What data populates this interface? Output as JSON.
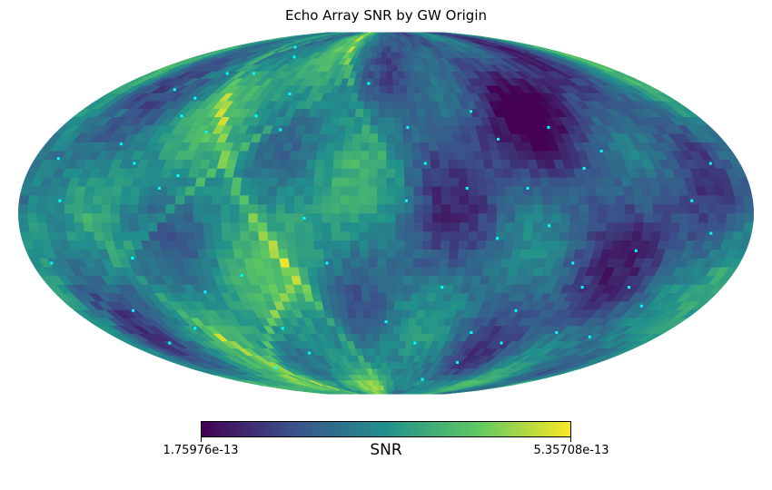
{
  "chart_data": {
    "type": "heatmap",
    "projection": "mollweide",
    "title": "Echo Array SNR by GW Origin",
    "colorbar": {
      "label": "SNR",
      "min_label": "1.75976e-13",
      "max_label": "5.35708e-13",
      "min": 1.75976e-13,
      "max": 5.35708e-13,
      "colormap": "viridis",
      "colors": [
        "#440154",
        "#3b528b",
        "#21918c",
        "#5ec962",
        "#fde725"
      ],
      "orientation": "horizontal"
    },
    "background_color": "#ffffff",
    "marker_color": "#00ffff",
    "grid": false,
    "markers": [
      {
        "lon": 105,
        "lat": 75
      },
      {
        "lon": 86,
        "lat": 69
      },
      {
        "lon": 120,
        "lat": 60
      },
      {
        "lon": 100,
        "lat": 60
      },
      {
        "lon": 120,
        "lat": 48
      },
      {
        "lon": 140,
        "lat": 52
      },
      {
        "lon": 62,
        "lat": 50
      },
      {
        "lon": 75,
        "lat": 40
      },
      {
        "lon": 118,
        "lat": 40
      },
      {
        "lon": 98,
        "lat": 33
      },
      {
        "lon": 58,
        "lat": 34
      },
      {
        "lon": 140,
        "lat": 28
      },
      {
        "lon": 168,
        "lat": 22
      },
      {
        "lon": 128,
        "lat": 20
      },
      {
        "lon": 104,
        "lat": 15
      },
      {
        "lon": 160,
        "lat": 5
      },
      {
        "lon": 112,
        "lat": 10
      },
      {
        "lon": 170,
        "lat": -20
      },
      {
        "lon": 128,
        "lat": -18
      },
      {
        "lon": 146,
        "lat": -40
      },
      {
        "lon": 150,
        "lat": -55
      },
      {
        "lon": 120,
        "lat": -48
      },
      {
        "lon": 98,
        "lat": -32
      },
      {
        "lon": 75,
        "lat": -25
      },
      {
        "lon": 65,
        "lat": -48
      },
      {
        "lon": 58,
        "lat": -60
      },
      {
        "lon": 100,
        "lat": -68
      },
      {
        "lon": 40,
        "lat": -2
      },
      {
        "lon": 12,
        "lat": 55
      },
      {
        "lon": -12,
        "lat": 35
      },
      {
        "lon": -10,
        "lat": 5
      },
      {
        "lon": -20,
        "lat": 20
      },
      {
        "lon": -30,
        "lat": -30
      },
      {
        "lon": -55,
        "lat": -50
      },
      {
        "lon": -42,
        "lat": -75
      },
      {
        "lon": -50,
        "lat": 42
      },
      {
        "lon": -60,
        "lat": 30
      },
      {
        "lon": -70,
        "lat": 10
      },
      {
        "lon": -90,
        "lat": 35
      },
      {
        "lon": -100,
        "lat": 18
      },
      {
        "lon": -112,
        "lat": 25
      },
      {
        "lon": -80,
        "lat": -5
      },
      {
        "lon": -95,
        "lat": -20
      },
      {
        "lon": -105,
        "lat": -30
      },
      {
        "lon": -125,
        "lat": -15
      },
      {
        "lon": -130,
        "lat": -30
      },
      {
        "lon": -145,
        "lat": -38
      },
      {
        "lon": -150,
        "lat": 5
      },
      {
        "lon": -160,
        "lat": -8
      },
      {
        "lon": -110,
        "lat": -50
      },
      {
        "lon": -80,
        "lat": -55
      },
      {
        "lon": -135,
        "lat": -52
      },
      {
        "lon": -165,
        "lat": 20
      },
      {
        "lon": -60,
        "lat": -65
      },
      {
        "lon": 0,
        "lat": -45
      },
      {
        "lon": -20,
        "lat": -55
      },
      {
        "lon": 30,
        "lat": -20
      },
      {
        "lon": -40,
        "lat": 10
      },
      {
        "lon": -55,
        "lat": -10
      },
      {
        "lon": -75,
        "lat": -40
      }
    ]
  }
}
